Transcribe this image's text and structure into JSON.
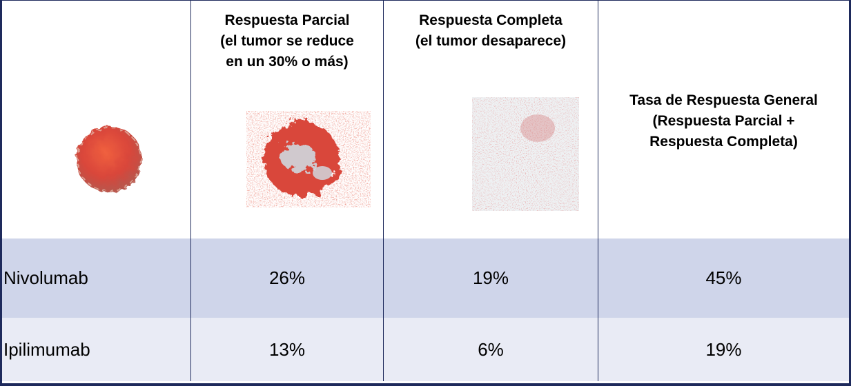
{
  "header": [
    {
      "lines": [
        "Respuesta Parcial",
        "(el tumor se reduce",
        "en un 30% o más)"
      ]
    },
    {
      "lines": [
        "Respuesta Completa",
        "(el tumor desaparece)"
      ]
    },
    {
      "lines": [
        "Tasa de Respuesta General",
        "(Respuesta Parcial +",
        "Respuesta Completa)"
      ]
    }
  ],
  "rows": [
    [
      "Nivolumab",
      "26%",
      "19%",
      "45%"
    ],
    [
      "Ipilimumab",
      "13%",
      "6%",
      "19%"
    ]
  ]
}
